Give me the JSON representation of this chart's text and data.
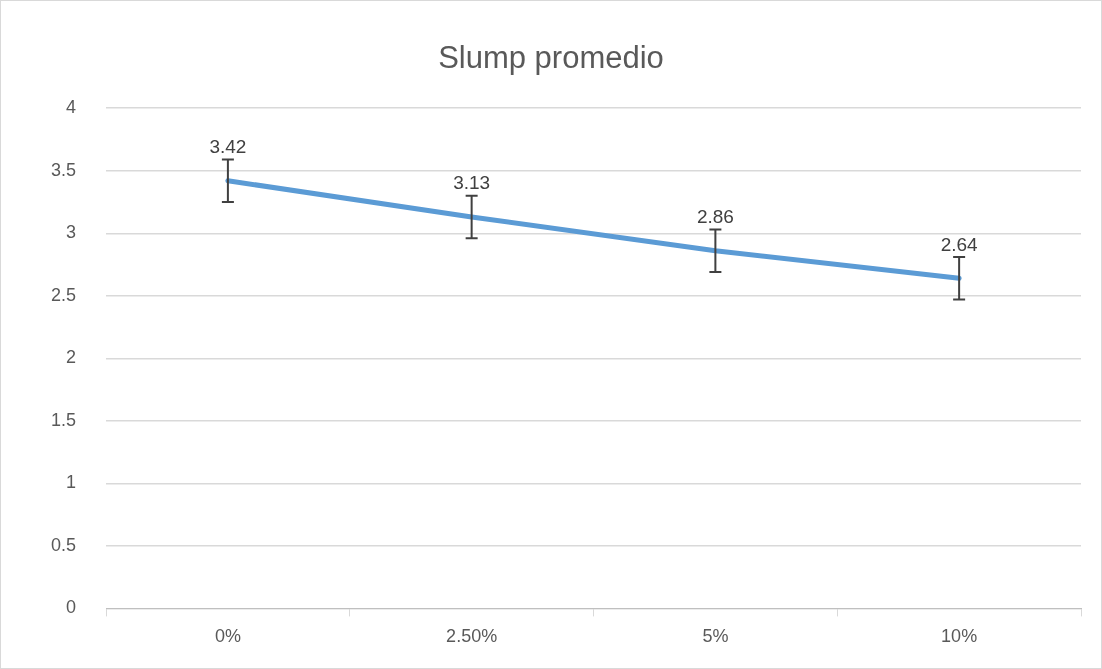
{
  "chart_data": {
    "type": "line",
    "title": "Slump promedio",
    "categories": [
      "0%",
      "2.50%",
      "5%",
      "10%"
    ],
    "series": [
      {
        "color": "#5b9bd5",
        "values": [
          3.42,
          3.13,
          2.86,
          2.64
        ],
        "errors": [
          0.17,
          0.17,
          0.17,
          0.17
        ]
      }
    ],
    "ylim": [
      0,
      4
    ],
    "yticks": [
      0,
      0.5,
      1,
      1.5,
      2,
      2.5,
      3,
      3.5,
      4
    ],
    "grid": "y",
    "legend": false,
    "marker": "none",
    "data_labels": true
  }
}
